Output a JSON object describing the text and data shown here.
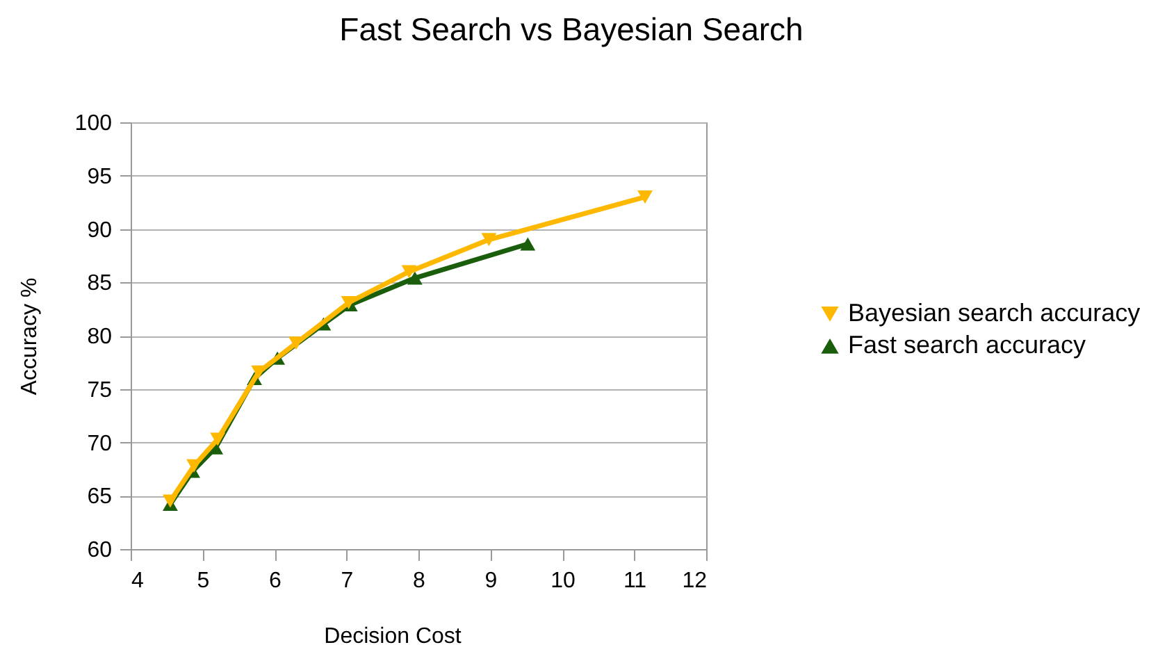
{
  "chart_data": {
    "type": "line",
    "title": "Fast Search vs Bayesian Search",
    "xlabel": "Decision Cost",
    "ylabel": "Accuracy %",
    "xlim": [
      4,
      12
    ],
    "xticks": [
      4,
      5,
      6,
      7,
      8,
      9,
      10,
      11,
      12
    ],
    "ylim": [
      60,
      100
    ],
    "yticks": [
      60,
      65,
      70,
      75,
      80,
      85,
      90,
      95,
      100
    ],
    "grid": "y",
    "legend": "right",
    "line_style": "solid",
    "series": [
      {
        "name": "Bayesian search accuracy",
        "color": "#ffb800",
        "marker": "triangle-down",
        "x": [
          4.55,
          4.88,
          5.21,
          5.78,
          6.3,
          7.03,
          7.87,
          8.98,
          11.15
        ],
        "values": [
          64.5,
          67.8,
          70.3,
          76.6,
          79.3,
          83.1,
          86.0,
          89.0,
          93.0
        ]
      },
      {
        "name": "Fast search accuracy",
        "color": "#1a5e0c",
        "marker": "triangle",
        "x": [
          4.55,
          4.86,
          5.18,
          5.72,
          6.04,
          6.68,
          7.05,
          7.95,
          9.52
        ],
        "values": [
          64.2,
          67.3,
          69.5,
          76.0,
          77.9,
          81.1,
          82.9,
          85.4,
          88.6
        ]
      }
    ]
  }
}
